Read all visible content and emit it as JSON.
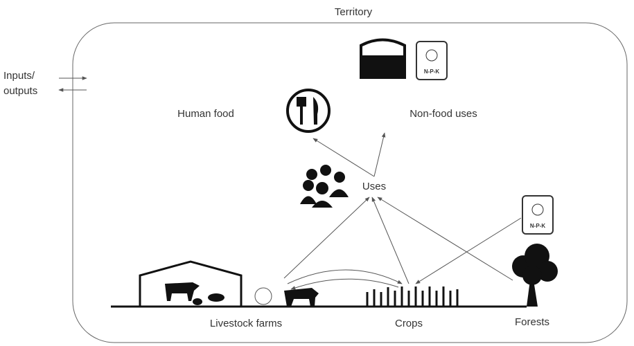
{
  "title": "Territory",
  "inputs_outputs": [
    "Inputs/",
    "outputs"
  ],
  "nodes": [
    {
      "label": "Human food"
    },
    {
      "label": "Non-food uses"
    },
    {
      "label": "Uses"
    },
    {
      "label": "Livestock farms"
    },
    {
      "label": "Crops"
    },
    {
      "label": "Forests"
    }
  ],
  "fertilizer_labels": [
    "N-P-K",
    "N-P-K"
  ]
}
